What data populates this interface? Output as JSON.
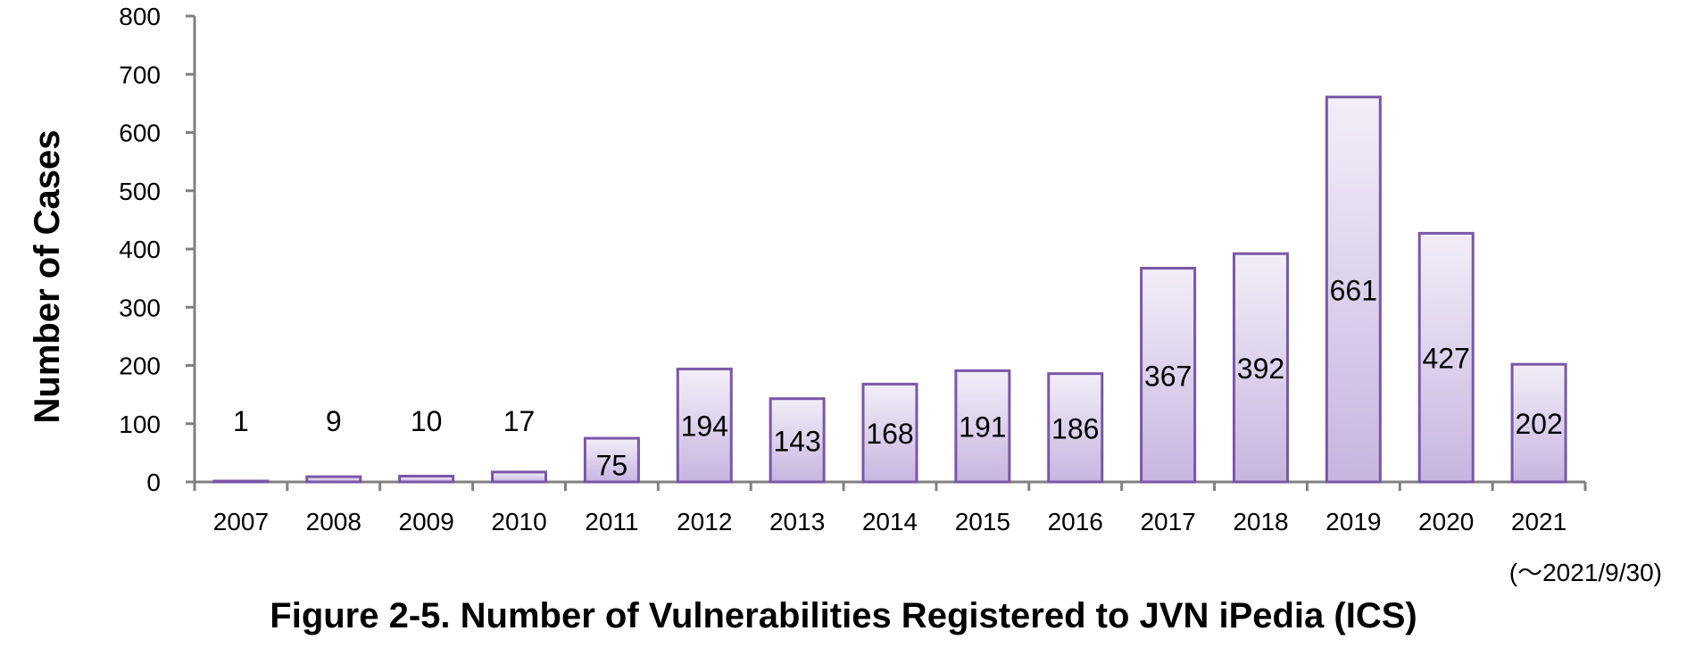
{
  "chart_data": {
    "type": "bar",
    "title": "Figure 2-5. Number of Vulnerabilities Registered to JVN iPedia (ICS)",
    "ylabel": "Number of Cases",
    "xlabel": "",
    "note": "(～2021/9/30)",
    "categories": [
      "2007",
      "2008",
      "2009",
      "2010",
      "2011",
      "2012",
      "2013",
      "2014",
      "2015",
      "2016",
      "2017",
      "2018",
      "2019",
      "2020",
      "2021"
    ],
    "values": [
      1,
      9,
      10,
      17,
      75,
      194,
      143,
      168,
      191,
      186,
      367,
      392,
      661,
      427,
      202
    ],
    "ylim": [
      0,
      800
    ],
    "yticks": [
      0,
      100,
      200,
      300,
      400,
      500,
      600,
      700,
      800
    ],
    "grid": false,
    "legend": "none",
    "colors": {
      "bar_top": "#f2eef8",
      "bar_bottom": "#c7b5e0",
      "bar_border": "#7b56a8",
      "axis": "#808080"
    }
  }
}
